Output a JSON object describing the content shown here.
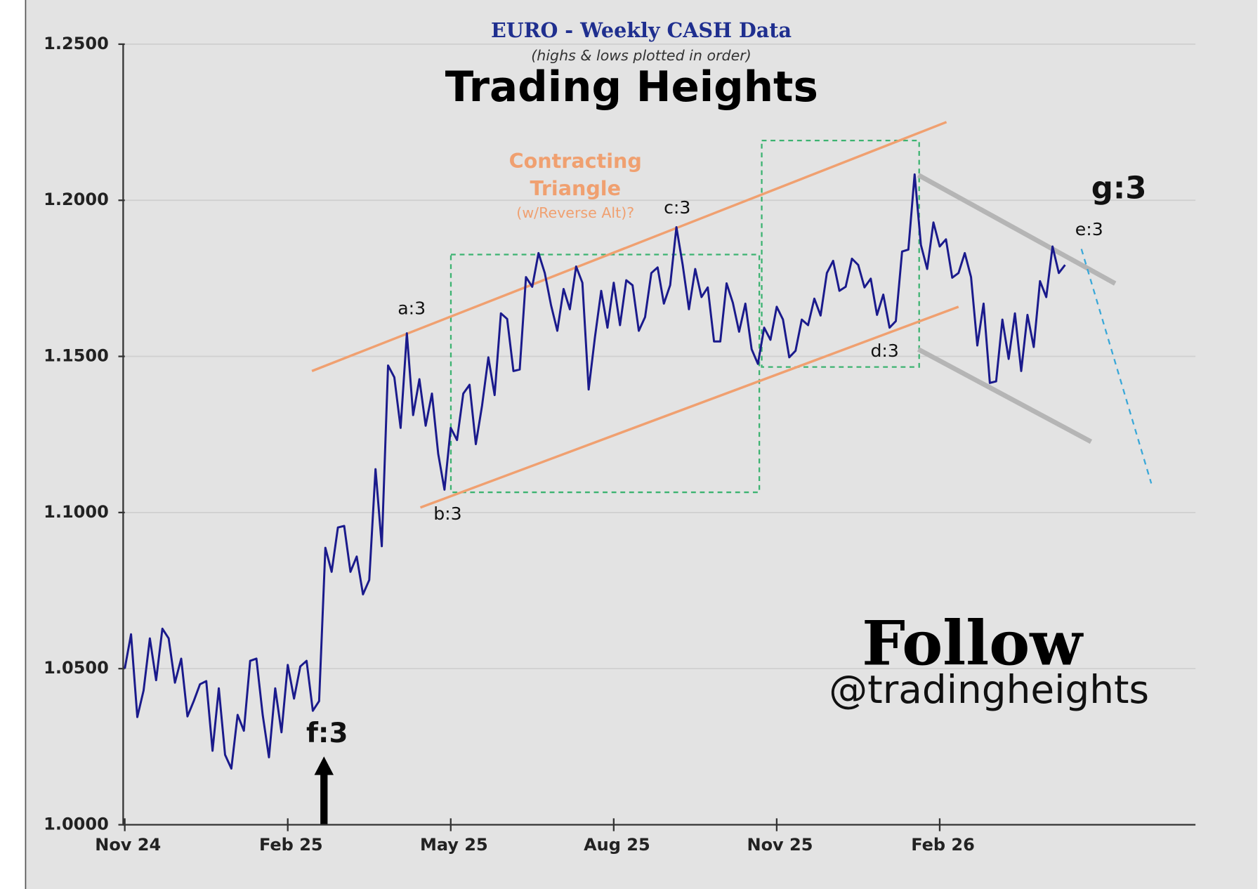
{
  "chart_data": {
    "type": "line",
    "title": "EURO - Weekly CASH Data",
    "subtitle": "(highs & lows plotted in order)",
    "brand": "Trading Heights",
    "pattern_label": [
      "Contracting",
      "Triangle"
    ],
    "pattern_note": "(w/Reverse Alt)?",
    "annotations": [
      "a:3",
      "b:3",
      "c:3",
      "d:3",
      "e:3",
      "f:3",
      "g:3"
    ],
    "follow": "Follow",
    "handle": "@tradingheights",
    "color": "#1a1a8c",
    "grid": true,
    "xlim": [
      0,
      85.4
    ],
    "ylim": [
      1.0,
      1.25
    ],
    "xticks": [
      {
        "value": 0,
        "label": "Nov 24"
      },
      {
        "value": 13,
        "label": "Feb 25"
      },
      {
        "value": 26,
        "label": "May 25"
      },
      {
        "value": 39,
        "label": "Aug 25"
      },
      {
        "value": 52,
        "label": "Nov 25"
      },
      {
        "value": 65,
        "label": "Feb 26"
      }
    ],
    "yticks": [
      {
        "value": 1,
        "label": "1.0000"
      },
      {
        "value": 1.05,
        "label": "1.0500"
      },
      {
        "value": 1.1,
        "label": "1.1000"
      },
      {
        "value": 1.15,
        "label": "1.1500"
      },
      {
        "value": 1.2,
        "label": "1.2000"
      },
      {
        "value": 1.25,
        "label": "1.2500"
      }
    ],
    "x": [
      0,
      0.5,
      1,
      1.5,
      2,
      2.5,
      3,
      3.5,
      4,
      4.5,
      5,
      5.5,
      6,
      6.5,
      7,
      7.5,
      8,
      8.5,
      9,
      9.5,
      10,
      10.5,
      11,
      11.5,
      12,
      12.5,
      13,
      13.5,
      14,
      14.5,
      15,
      15.5,
      16,
      16.5,
      17,
      17.5,
      18,
      18.5,
      19,
      19.5,
      20,
      20.5,
      21,
      21.5,
      22,
      22.5,
      23,
      23.5,
      24,
      24.5,
      25,
      25.5,
      26,
      26.5,
      27,
      27.5,
      28,
      28.5,
      29,
      29.5,
      30,
      30.5,
      31,
      31.5,
      32,
      32.5,
      33,
      33.5,
      34,
      34.5,
      35,
      35.5,
      36,
      36.5,
      37,
      37.5,
      38,
      38.5,
      39,
      39.5,
      40,
      40.5,
      41,
      41.5,
      42,
      42.5,
      43,
      43.5,
      44,
      44.5,
      45,
      45.5,
      46,
      46.5,
      47,
      47.5,
      48,
      48.5,
      49,
      49.5,
      50,
      50.5,
      51,
      51.5,
      52,
      52.5,
      53,
      53.5,
      54,
      54.5,
      55,
      55.5,
      56,
      56.5,
      57,
      57.5,
      58,
      58.5,
      59,
      59.5,
      60,
      60.5,
      61,
      61.5,
      62,
      62.5,
      63,
      63.5,
      64,
      64.5,
      65,
      65.5,
      66,
      66.5,
      67,
      67.5,
      68,
      68.5,
      69,
      69.5,
      70,
      70.5,
      71,
      71.5,
      72,
      72.5,
      73,
      73.5,
      74,
      74.5,
      75
    ],
    "values": [
      1.05,
      1.061,
      1.0345,
      1.043,
      1.0597,
      1.0463,
      1.0628,
      1.0597,
      1.0455,
      1.0532,
      1.0347,
      1.0396,
      1.045,
      1.046,
      1.0237,
      1.0437,
      1.0224,
      1.018,
      1.0352,
      1.0301,
      1.0525,
      1.0532,
      1.0352,
      1.0216,
      1.0437,
      1.0296,
      1.0512,
      1.0404,
      1.0507,
      1.0525,
      1.0365,
      1.0396,
      1.0887,
      1.081,
      1.0952,
      1.0957,
      1.081,
      1.0859,
      1.0738,
      1.0784,
      1.1139,
      1.0892,
      1.1471,
      1.1433,
      1.1271,
      1.1574,
      1.1312,
      1.1427,
      1.1278,
      1.1381,
      1.1188,
      1.1073,
      1.1271,
      1.1232,
      1.1381,
      1.1409,
      1.1219,
      1.1343,
      1.1497,
      1.1376,
      1.1638,
      1.162,
      1.1453,
      1.1458,
      1.1754,
      1.1723,
      1.1831,
      1.1767,
      1.1664,
      1.1582,
      1.1716,
      1.1651,
      1.1788,
      1.1736,
      1.1394,
      1.1561,
      1.171,
      1.1592,
      1.1736,
      1.16,
      1.1744,
      1.1728,
      1.1582,
      1.1626,
      1.1767,
      1.1785,
      1.1669,
      1.1728,
      1.1914,
      1.1793,
      1.1651,
      1.178,
      1.169,
      1.1721,
      1.1548,
      1.1548,
      1.1734,
      1.1672,
      1.1579,
      1.1669,
      1.1523,
      1.1476,
      1.1592,
      1.1553,
      1.1659,
      1.1618,
      1.1497,
      1.1518,
      1.1618,
      1.16,
      1.1685,
      1.1631,
      1.1767,
      1.1806,
      1.171,
      1.1723,
      1.1813,
      1.1793,
      1.1721,
      1.1749,
      1.1633,
      1.1698,
      1.1592,
      1.1613,
      1.1836,
      1.1842,
      1.2083,
      1.1857,
      1.178,
      1.1929,
      1.1852,
      1.1875,
      1.1752,
      1.1767,
      1.1831,
      1.1754,
      1.1535,
      1.1669,
      1.1415,
      1.142,
      1.1618,
      1.1492,
      1.1638,
      1.1453,
      1.1633,
      1.153,
      1.1741,
      1.169,
      1.1852,
      1.1767,
      1.1793
    ]
  }
}
